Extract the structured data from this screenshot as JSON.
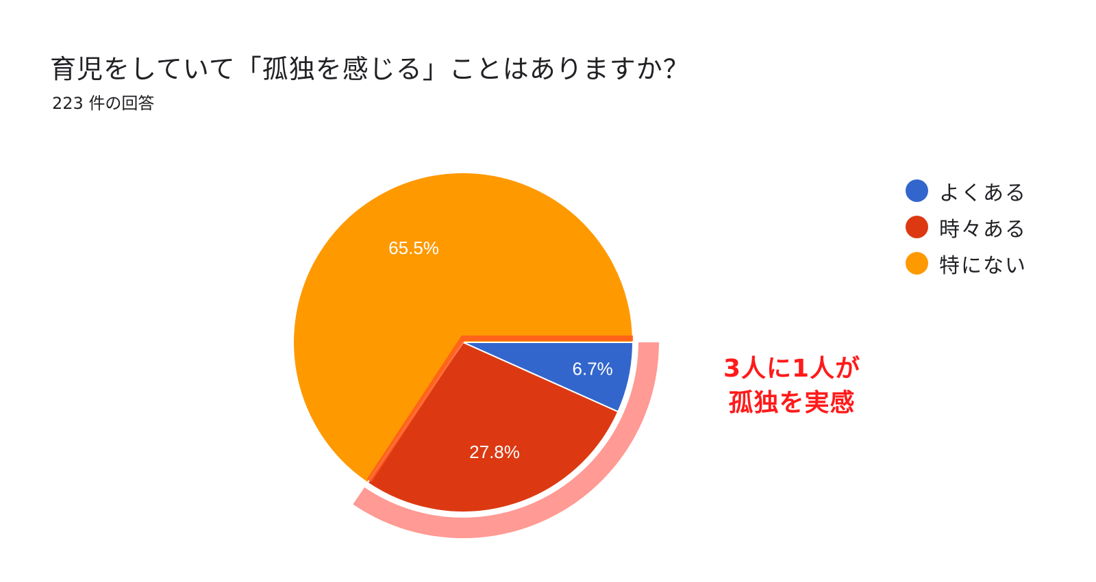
{
  "header": {
    "title": "育児をしていて「孤独を感じる」ことはありますか？",
    "subtitle": "223 件の回答"
  },
  "chart_data": {
    "type": "pie",
    "title": "育児をしていて「孤独を感じる」ことはありますか？",
    "subtitle": "223 件の回答",
    "categories": [
      "よくある",
      "時々ある",
      "特にない"
    ],
    "values": [
      6.7,
      27.8,
      65.5
    ],
    "labels": [
      "6.7%",
      "27.8%",
      "65.5%"
    ],
    "colors": [
      "#3366cc",
      "#dc3912",
      "#ff9900"
    ],
    "legend": "right",
    "annotation": {
      "line1": "3人に1人が",
      "line2": "孤独を実感",
      "color": "#ff1a1a",
      "highlight_color": "#ff9a94"
    }
  }
}
